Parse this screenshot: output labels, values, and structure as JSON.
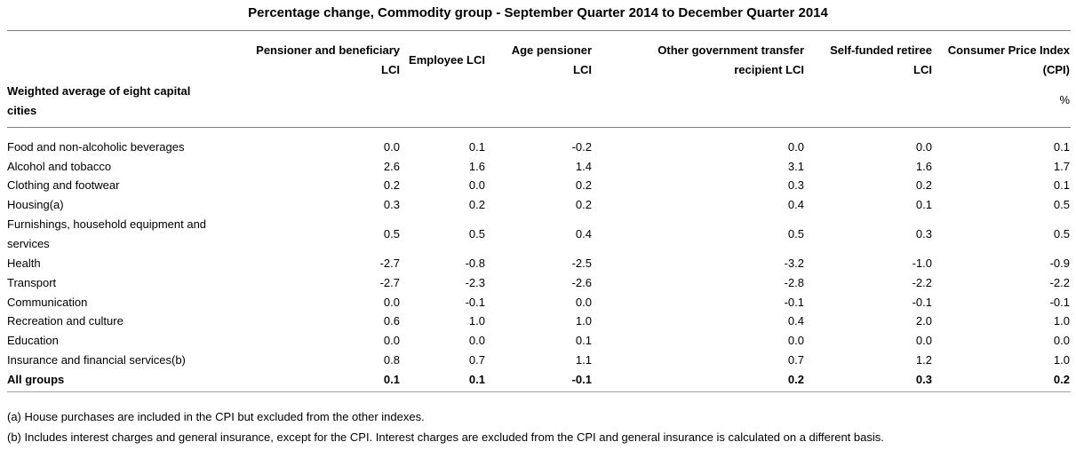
{
  "title": "Percentage change, Commodity group - September Quarter 2014 to December Quarter 2014",
  "row_header": "Weighted average of eight capital cities",
  "columns": [
    {
      "line1": "Pensioner and beneficiary",
      "line2": "LCI"
    },
    {
      "line1": "Employee LCI",
      "line2": ""
    },
    {
      "line1": "Age pensioner",
      "line2": "LCI"
    },
    {
      "line1": "Other government transfer",
      "line2": "recipient LCI"
    },
    {
      "line1": "Self-funded retiree",
      "line2": "LCI"
    },
    {
      "line1": "Consumer Price Index",
      "line2": "(CPI)"
    }
  ],
  "unit": "%",
  "rows": [
    {
      "label": "Food and non-alcoholic beverages",
      "values": [
        "0.0",
        "0.1",
        "-0.2",
        "0.0",
        "0.0",
        "0.1"
      ]
    },
    {
      "label": "Alcohol and tobacco",
      "values": [
        "2.6",
        "1.6",
        "1.4",
        "3.1",
        "1.6",
        "1.7"
      ]
    },
    {
      "label": "Clothing and footwear",
      "values": [
        "0.2",
        "0.0",
        "0.2",
        "0.3",
        "0.2",
        "0.1"
      ]
    },
    {
      "label": "Housing(a)",
      "values": [
        "0.3",
        "0.2",
        "0.2",
        "0.4",
        "0.1",
        "0.5"
      ]
    },
    {
      "label": "Furnishings, household equipment and services",
      "values": [
        "0.5",
        "0.5",
        "0.4",
        "0.5",
        "0.3",
        "0.5"
      ]
    },
    {
      "label": "Health",
      "values": [
        "-2.7",
        "-0.8",
        "-2.5",
        "-3.2",
        "-1.0",
        "-0.9"
      ]
    },
    {
      "label": "Transport",
      "values": [
        "-2.7",
        "-2.3",
        "-2.6",
        "-2.8",
        "-2.2",
        "-2.2"
      ]
    },
    {
      "label": "Communication",
      "values": [
        "0.0",
        "-0.1",
        "0.0",
        "-0.1",
        "-0.1",
        "-0.1"
      ]
    },
    {
      "label": "Recreation and culture",
      "values": [
        "0.6",
        "1.0",
        "1.0",
        "0.4",
        "2.0",
        "1.0"
      ]
    },
    {
      "label": "Education",
      "values": [
        "0.0",
        "0.0",
        "0.1",
        "0.0",
        "0.0",
        "0.0"
      ]
    },
    {
      "label": "Insurance and financial services(b)",
      "values": [
        "0.8",
        "0.7",
        "1.1",
        "0.7",
        "1.2",
        "1.0"
      ]
    },
    {
      "label": "All groups",
      "values": [
        "0.1",
        "0.1",
        "-0.1",
        "0.2",
        "0.3",
        "0.2"
      ]
    }
  ],
  "notes": [
    "(a) House purchases are included in the CPI but excluded from the other indexes.",
    "(b) Includes interest charges and general insurance, except for the CPI. Interest charges are excluded from the CPI and general insurance is calculated on a different basis."
  ]
}
